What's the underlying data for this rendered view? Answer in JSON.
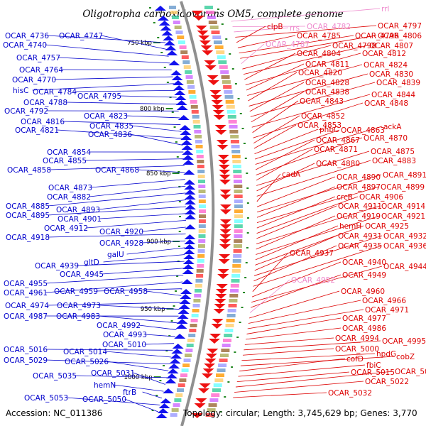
{
  "title": "Oligotropha carboxidovorans OM5, complete genome",
  "accession": "Accession: NC_011386",
  "topology": "Topology: circular; Length: 3,745,629 bp; Genes: 3,770",
  "colors": {
    "forward_label": "#0000cc",
    "reverse_label": "#dd0000",
    "rna_label": "#ee88cc",
    "forward_arrow": "#1111ee",
    "reverse_arrow": "#ee1111",
    "backbone": "#909090"
  },
  "scale_ticks": [
    "750 kbp",
    "800 kbp",
    "850 kbp",
    "900 kbp",
    "950 kbp",
    "1000 kbp"
  ],
  "left_labels": [
    "OCAR_4736",
    "OCAR_4747",
    "OCAR_4740",
    "OCAR_4757",
    "OCAR_4764",
    "OCAR_4770",
    "hisC",
    "OCAR_4784",
    "OCAR_4795",
    "OCAR_4788",
    "OCAR_4792",
    "OCAR_4823",
    "OCAR_4816",
    "OCAR_4835",
    "OCAR_4821",
    "OCAR_4836",
    "OCAR_4854",
    "OCAR_4855",
    "OCAR_4858",
    "OCAR_4868",
    "OCAR_4873",
    "OCAR_4882",
    "OCAR_4885",
    "OCAR_4893",
    "OCAR_4895",
    "OCAR_4901",
    "OCAR_4912",
    "OCAR_4920",
    "OCAR_4918",
    "OCAR_4928",
    "galU",
    "gltD",
    "OCAR_4939",
    "OCAR_4945",
    "OCAR_4955",
    "OCAR_4961",
    "OCAR_4959",
    "OCAR_4958",
    "OCAR_4974",
    "OCAR_4973",
    "OCAR_4987",
    "OCAR_4983",
    "OCAR_4992",
    "OCAR_4993",
    "OCAR_5010",
    "OCAR_5016",
    "OCAR_5014",
    "OCAR_5029",
    "OCAR_5026",
    "OCAR_5035",
    "OCAR_5031",
    "hemN",
    "ftrB",
    "OCAR_5053",
    "OCAR_5050"
  ],
  "right_labels": [
    "rrl",
    "OCAR_4782",
    "rrs",
    "OCAR_4797",
    "clpB",
    "OCAR_4785",
    "OCAR_4796",
    "OCAR_4806",
    "OCAR_4787",
    "OCAR_4798",
    "OCAR_4807",
    "OCAR_4804",
    "OCAR_4812",
    "OCAR_4811",
    "OCAR_4824",
    "OCAR_4820",
    "OCAR_4830",
    "OCAR_4828",
    "OCAR_4839",
    "OCAR_4838",
    "OCAR_4844",
    "OCAR_4843",
    "OCAR_4848",
    "OCAR_4852",
    "OCAR_4853",
    "phbC",
    "OCAR_4863",
    "ackA",
    "OCAR_4867",
    "OCAR_4870",
    "OCAR_4871",
    "OCAR_4875",
    "OCAR_4880",
    "OCAR_4883",
    "cadA",
    "OCAR_4890",
    "OCAR_4891",
    "OCAR_4897",
    "OCAR_4899",
    "crcB",
    "OCAR_4906",
    "OCAR_4911",
    "OCAR_4914",
    "OCAR_4919",
    "OCAR_4921",
    "hemH",
    "OCAR_4925",
    "OCAR_4931",
    "OCAR_4932",
    "OCAR_4935",
    "OCAR_4936",
    "OCAR_4937",
    "OCAR_4940",
    "OCAR_4944",
    "OCAR_4949",
    "OCAR_4952",
    "OCAR_4960",
    "OCAR_4966",
    "OCAR_4971",
    "OCAR_4977",
    "OCAR_4986",
    "OCAR_4994",
    "OCAR_4995",
    "OCAR_5000",
    "hpdG",
    "cobZ",
    "cofD",
    "fbiC",
    "OCAR_5015",
    "OCAR_5012",
    "OCAR_5022",
    "OCAR_5032"
  ],
  "rna_labels": [
    "rrl",
    "OCAR_4782",
    "rrs",
    "OCAR_4787",
    "OCAR_4952"
  ]
}
